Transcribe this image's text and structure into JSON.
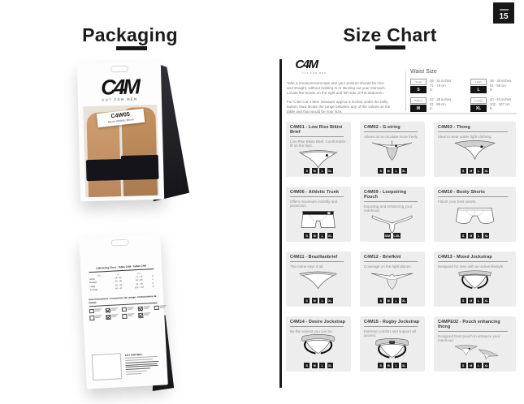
{
  "page": {
    "number": "15"
  },
  "colors": {
    "accent": "#1b1b1b",
    "card_bg": "#ededed",
    "badge_bg": "#131313"
  },
  "left": {
    "title": "Packaging",
    "front_package": {
      "logo": "C4M",
      "logo_sub": "CUT FOR MEN",
      "label_code": "C4W05",
      "label_name": "Men's Athletic Boxer"
    },
    "back_package": {
      "table_title": "C4M Sizing Chart - Tallas C4M - Tailles C4M",
      "table_headers": [
        "Size",
        "in",
        "cm",
        ""
      ],
      "table_rows": [
        [
          "Small",
          "28 - 31",
          "71 - 78",
          "3"
        ],
        [
          "Medium",
          "32 - 35",
          "81 - 89",
          "4"
        ],
        [
          "Large",
          "36 - 39",
          "91 - 99",
          "5"
        ],
        [
          "X-Large",
          "40 - 42",
          "102 - 107",
          "6"
        ]
      ],
      "care_title": "Care Instructions - Instructions de Lavage - Instrucciones de lavado",
      "care_icons": [
        {
          "name": "machine-wash-icon",
          "crossed": false
        },
        {
          "name": "do-not-bleach-icon",
          "crossed": true
        },
        {
          "name": "tumble-dry-low-icon",
          "crossed": false
        },
        {
          "name": "do-not-iron-icon",
          "crossed": true
        },
        {
          "name": "wash-similar-colors-icon",
          "crossed": false
        },
        {
          "name": "hand-wash-icon",
          "crossed": false
        },
        {
          "name": "do-not-dry-clean-icon",
          "crossed": true
        },
        {
          "name": "line-dry-icon",
          "crossed": false
        },
        {
          "name": "do-not-wring-icon",
          "crossed": true
        }
      ],
      "footer_brand": "CUT FOR MEN"
    }
  },
  "right": {
    "title": "Size Chart",
    "logo": "C4M",
    "logo_sub": "CUT FOR MEN",
    "intro_paragraphs": [
      "Take a measurement tape and your posture should be nice and straight, without holding in or sticking out your stomach. Locate the bones on the right and left side of the abdomen.",
      "For C4M Cut 4 Men measure approx 5 inches under the belly button. Now locate the range between any of the values on the table and that would be your size."
    ],
    "waist": {
      "title": "Waist Size",
      "entries": [
        {
          "name": "Small",
          "letter": "S",
          "lines": [
            "28 - 31 inches",
            "71 - 78 cm",
            "3-"
          ]
        },
        {
          "name": "Large",
          "letter": "L",
          "lines": [
            "36 - 39 inches",
            "91 - 99 cm",
            "5-"
          ]
        },
        {
          "name": "Medium",
          "letter": "M",
          "lines": [
            "32 - 35 inches",
            "81 - 89 cm",
            "4-"
          ]
        },
        {
          "name": "X-Large",
          "letter": "XL",
          "lines": [
            "40 - 42 inches",
            "102 - 107 cm",
            "6-"
          ]
        }
      ]
    },
    "products": [
      {
        "title": "C4M01 - Low Rise Bikini Brief",
        "desc": "Low Rise Bikini Brief. Comfortable fit on the hips.",
        "sizes": [
          "S",
          "M",
          "L",
          "XL"
        ],
        "illustration": "bikini"
      },
      {
        "title": "C4M02 - G-string",
        "desc": "Allows air to circulate more freely.",
        "sizes": [
          "S",
          "M",
          "L",
          "XL"
        ],
        "illustration": "gstring"
      },
      {
        "title": "C4M03 - Thong",
        "desc": "Ideal to wear under tight clothing.",
        "sizes": [
          "S",
          "M",
          "L",
          "XL"
        ],
        "illustration": "thong"
      },
      {
        "title": "C4M06 - Athletic Trunk",
        "desc": "Offers maximum mobility and protection.",
        "sizes": [
          "S",
          "M",
          "L",
          "XL"
        ],
        "illustration": "trunk"
      },
      {
        "title": "C4M09 - Loopstring Pouch",
        "desc": "Exposing and enhancing your manhood.",
        "sizes": [
          "S/M",
          "L/XL"
        ],
        "illustration": "pouch"
      },
      {
        "title": "C4M10 - Booty Shorts",
        "desc": "Flaunt your best assets.",
        "sizes": [
          "S",
          "M",
          "L",
          "XL"
        ],
        "illustration": "shorts"
      },
      {
        "title": "C4M11 - Brazilianbrief",
        "desc": "The name says it all.",
        "sizes": [
          "S",
          "M",
          "L",
          "XL"
        ],
        "illustration": "brazilian"
      },
      {
        "title": "C4M12 - Briefkini",
        "desc": "Coverage on the right places.",
        "sizes": [
          "S",
          "M",
          "L",
          "XL"
        ],
        "illustration": "briefkini"
      },
      {
        "title": "C4M13 - Mixed Jockstrap",
        "desc": "Designed for men with an active lifestyle.",
        "sizes": [
          "S",
          "M",
          "L",
          "XL"
        ],
        "illustration": "jockstrap"
      },
      {
        "title": "C4M14 - Desire Jockstrap",
        "desc": "Be the sexiest you can be.",
        "sizes": [
          "S",
          "M",
          "L",
          "XL"
        ],
        "illustration": "jockstrap2"
      },
      {
        "title": "C4M15 - Rugby Jockstrap",
        "desc": "Extreme comfort and support all around.",
        "sizes": [
          "S",
          "M",
          "L",
          "XL"
        ],
        "illustration": "rugby"
      },
      {
        "title": "C4MPE02 - Pouch enhancing thong",
        "desc": "Designed front pouch to enhance your manhood.",
        "sizes": [
          "S",
          "M",
          "L",
          "XL"
        ],
        "illustration": "pouchthong"
      }
    ]
  }
}
